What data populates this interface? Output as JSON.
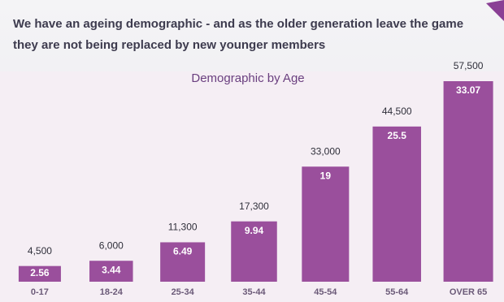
{
  "heading": [
    "We have an ageing demographic - and as the older generation leave the game",
    "they are not being replaced by new younger members"
  ],
  "chart_data": {
    "type": "bar",
    "title": "Demographic by Age",
    "categories": [
      "0-17",
      "18-24",
      "25-34",
      "35-44",
      "45-54",
      "55-64",
      "OVER 65"
    ],
    "values": [
      4500,
      6000,
      11300,
      17300,
      33000,
      44500,
      57500
    ],
    "value_labels": [
      "4,500",
      "6,000",
      "11,300",
      "17,300",
      "33,000",
      "44,500",
      "57,500"
    ],
    "percentages": [
      2.56,
      3.44,
      6.49,
      9.94,
      19,
      25.5,
      33.07
    ],
    "color": "#9a4f9c"
  }
}
